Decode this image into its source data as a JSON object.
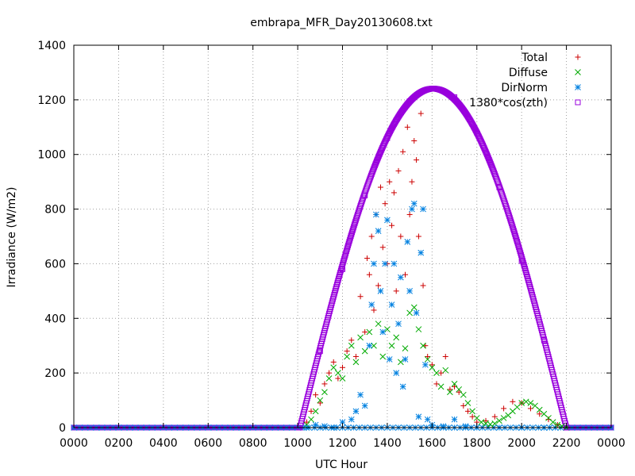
{
  "chart_data": {
    "type": "scatter",
    "title": "embrapa_MFR_Day20130608.txt",
    "xlabel": "UTC Hour",
    "ylabel": "Irradiance (W/m2)",
    "xlim": [
      0,
      24
    ],
    "ylim": [
      0,
      1400
    ],
    "grid": true,
    "legend_position": "top-right",
    "x_ticks": [
      {
        "value": 0,
        "label": "0000"
      },
      {
        "value": 2,
        "label": "0200"
      },
      {
        "value": 4,
        "label": "0400"
      },
      {
        "value": 6,
        "label": "0600"
      },
      {
        "value": 8,
        "label": "0800"
      },
      {
        "value": 10,
        "label": "1000"
      },
      {
        "value": 12,
        "label": "1200"
      },
      {
        "value": 14,
        "label": "1400"
      },
      {
        "value": 16,
        "label": "1600"
      },
      {
        "value": 18,
        "label": "1800"
      },
      {
        "value": 20,
        "label": "2000"
      },
      {
        "value": 22,
        "label": "2200"
      },
      {
        "value": 24,
        "label": "0000"
      }
    ],
    "y_ticks": [
      {
        "value": 0,
        "label": "0"
      },
      {
        "value": 200,
        "label": "200"
      },
      {
        "value": 400,
        "label": "400"
      },
      {
        "value": 600,
        "label": "600"
      },
      {
        "value": 800,
        "label": "800"
      },
      {
        "value": 1000,
        "label": "1000"
      },
      {
        "value": 1200,
        "label": "1200"
      },
      {
        "value": 1400,
        "label": "1400"
      }
    ],
    "series": [
      {
        "name": "Total",
        "marker": "plus",
        "color": "#cc0000",
        "x": [
          10.4,
          10.6,
          10.8,
          11.0,
          11.2,
          11.4,
          11.6,
          11.8,
          12.0,
          12.2,
          12.4,
          12.6,
          12.8,
          13.0,
          13.1,
          13.2,
          13.3,
          13.4,
          13.5,
          13.6,
          13.7,
          13.8,
          13.9,
          14.0,
          14.1,
          14.2,
          14.3,
          14.4,
          14.5,
          14.6,
          14.7,
          14.8,
          14.9,
          15.0,
          15.1,
          15.2,
          15.3,
          15.4,
          15.5,
          15.6,
          15.7,
          15.8,
          16.0,
          16.2,
          16.4,
          16.6,
          16.8,
          17.0,
          17.2,
          17.4,
          17.6,
          17.8,
          18.0,
          18.4,
          18.8,
          19.2,
          19.6,
          20.0,
          20.4,
          20.8,
          21.2,
          21.6
        ],
        "y": [
          20,
          60,
          120,
          90,
          160,
          200,
          240,
          180,
          220,
          280,
          320,
          260,
          480,
          350,
          620,
          560,
          700,
          430,
          780,
          520,
          880,
          660,
          820,
          600,
          900,
          740,
          860,
          500,
          940,
          700,
          1010,
          560,
          1100,
          780,
          900,
          1050,
          980,
          700,
          1150,
          520,
          300,
          260,
          230,
          160,
          200,
          260,
          140,
          150,
          130,
          80,
          60,
          40,
          20,
          25,
          40,
          70,
          95,
          90,
          70,
          50,
          30,
          10
        ]
      },
      {
        "name": "Diffuse",
        "marker": "cross",
        "color": "#00aa00",
        "x": [
          10.4,
          10.6,
          10.8,
          11.0,
          11.2,
          11.4,
          11.6,
          11.8,
          12.0,
          12.2,
          12.4,
          12.6,
          12.8,
          13.0,
          13.2,
          13.4,
          13.6,
          13.8,
          14.0,
          14.2,
          14.4,
          14.6,
          14.8,
          15.0,
          15.2,
          15.4,
          15.6,
          15.8,
          16.0,
          16.2,
          16.4,
          16.6,
          16.8,
          17.0,
          17.2,
          17.4,
          17.6,
          17.8,
          18.0,
          18.2,
          18.4,
          18.6,
          18.8,
          19.0,
          19.2,
          19.4,
          19.6,
          19.8,
          20.0,
          20.2,
          20.4,
          20.6,
          20.8,
          21.0,
          21.2,
          21.4,
          21.6,
          21.8,
          22.0
        ],
        "y": [
          10,
          30,
          60,
          100,
          130,
          180,
          220,
          200,
          180,
          260,
          300,
          240,
          330,
          280,
          350,
          300,
          380,
          260,
          360,
          300,
          330,
          240,
          290,
          420,
          440,
          360,
          300,
          250,
          220,
          200,
          150,
          210,
          130,
          160,
          140,
          120,
          90,
          60,
          35,
          20,
          15,
          12,
          15,
          25,
          35,
          45,
          60,
          75,
          90,
          95,
          90,
          80,
          65,
          50,
          35,
          20,
          10,
          5,
          0
        ]
      },
      {
        "name": "DirNorm",
        "marker": "star",
        "color": "#0080e0",
        "x": [
          10.4,
          10.8,
          11.2,
          11.6,
          12.0,
          12.4,
          12.6,
          12.8,
          13.0,
          13.2,
          13.3,
          13.4,
          13.5,
          13.6,
          13.7,
          13.8,
          13.9,
          14.0,
          14.1,
          14.2,
          14.3,
          14.4,
          14.5,
          14.6,
          14.7,
          14.8,
          14.9,
          15.0,
          15.1,
          15.2,
          15.3,
          15.4,
          15.5,
          15.6,
          15.7,
          15.8,
          16.0,
          16.5,
          17.0,
          17.5,
          18.0,
          19.0,
          20.0,
          21.0
        ],
        "y": [
          0,
          10,
          5,
          0,
          20,
          30,
          60,
          120,
          80,
          300,
          450,
          600,
          780,
          720,
          500,
          350,
          600,
          760,
          250,
          450,
          600,
          200,
          380,
          550,
          150,
          250,
          680,
          500,
          800,
          820,
          420,
          40,
          640,
          800,
          230,
          30,
          10,
          5,
          30,
          5,
          0,
          0,
          0,
          0
        ]
      },
      {
        "name": "1380*cos(zth)",
        "marker": "square",
        "color": "#9900dd",
        "model": {
          "rise_hour": 10.1,
          "set_hour": 22.0,
          "peak_hour": 16.05,
          "peak": 1241
        },
        "x": [
          10.1,
          11.0,
          12.0,
          13.0,
          14.0,
          15.0,
          16.05,
          17.0,
          18.0,
          19.0,
          20.0,
          21.0,
          22.0
        ],
        "y": [
          0,
          280,
          580,
          850,
          1060,
          1195,
          1241,
          1210,
          1080,
          880,
          610,
          320,
          0
        ]
      }
    ]
  }
}
